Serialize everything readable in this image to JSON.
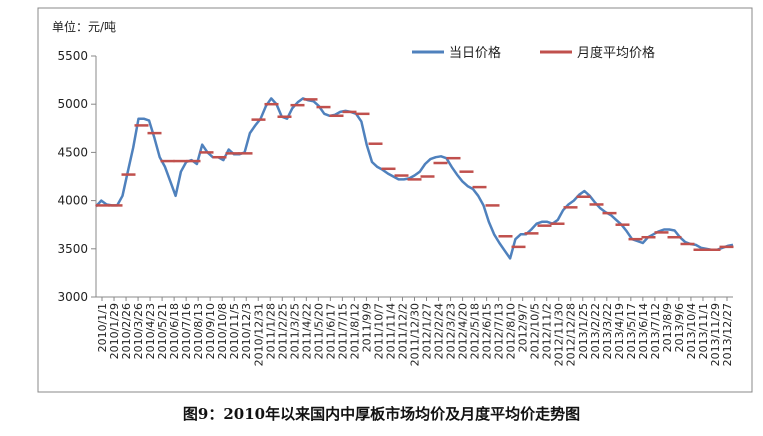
{
  "caption": "图9：2010年以来国内中厚板市场均价及月度平均价走势图",
  "chart_data": {
    "type": "line",
    "unit_label": "单位：元/吨",
    "title": "",
    "xlabel": "",
    "ylabel": "",
    "ylim": [
      3000,
      5500
    ],
    "y_ticks": [
      3000,
      3500,
      4000,
      4500,
      5000,
      5500
    ],
    "grid": false,
    "legend_position": "top-right",
    "colors": {
      "daily": "#4f81bd",
      "monthly": "#c0504d",
      "border": "#888888"
    },
    "x_tick_labels": [
      "2010/1/1",
      "2010/1/29",
      "2010/2/26",
      "2010/3/26",
      "2010/4/23",
      "2010/5/21",
      "2010/6/18",
      "2010/7/16",
      "2010/8/13",
      "2010/9/10",
      "2010/10/8",
      "2010/11/5",
      "2010/12/3",
      "2010/12/31",
      "2011/1/28",
      "2011/2/25",
      "2011/3/25",
      "2011/4/22",
      "2011/5/20",
      "2011/6/17",
      "2011/7/15",
      "2011/8/12",
      "2011/9/9",
      "2011/10/7",
      "2011/11/4",
      "2011/12/2",
      "2011/12/30",
      "2012/1/27",
      "2012/2/24",
      "2012/3/23",
      "2012/4/20",
      "2012/5/18",
      "2012/6/15",
      "2012/7/13",
      "2012/8/10",
      "2012/9/7",
      "2012/10/5",
      "2012/11/2",
      "2012/11/30",
      "2012/12/28",
      "2013/1/25",
      "2013/2/22",
      "2013/3/22",
      "2013/4/19",
      "2013/5/17",
      "2013/6/14",
      "2013/7/12",
      "2013/8/9",
      "2013/9/6",
      "2013/10/4",
      "2013/11/1",
      "2013/11/29",
      "2013/12/27"
    ],
    "series": [
      {
        "name": "当日价格",
        "values": [
          3940,
          4000,
          3960,
          3950,
          3950,
          4050,
          4300,
          4550,
          4850,
          4850,
          4830,
          4650,
          4450,
          4350,
          4200,
          4050,
          4300,
          4400,
          4420,
          4380,
          4580,
          4500,
          4450,
          4450,
          4420,
          4530,
          4480,
          4480,
          4500,
          4700,
          4780,
          4850,
          4980,
          5060,
          5000,
          4870,
          4850,
          4960,
          5020,
          5060,
          5040,
          5030,
          4980,
          4900,
          4880,
          4890,
          4920,
          4930,
          4920,
          4900,
          4820,
          4580,
          4400,
          4350,
          4320,
          4280,
          4250,
          4220,
          4220,
          4230,
          4260,
          4300,
          4380,
          4430,
          4450,
          4460,
          4440,
          4350,
          4270,
          4200,
          4150,
          4120,
          4050,
          3950,
          3780,
          3650,
          3560,
          3480,
          3400,
          3600,
          3650,
          3650,
          3700,
          3760,
          3780,
          3780,
          3760,
          3800,
          3900,
          3960,
          4000,
          4060,
          4100,
          4050,
          3980,
          3920,
          3880,
          3850,
          3800,
          3750,
          3680,
          3600,
          3580,
          3560,
          3620,
          3650,
          3680,
          3700,
          3700,
          3690,
          3620,
          3570,
          3550,
          3540,
          3510,
          3500,
          3490,
          3490,
          3510,
          3530,
          3540
        ]
      },
      {
        "name": "月度平均价格",
        "values": [
          3950,
          3950,
          4270,
          4780,
          4700,
          4410,
          4410,
          4410,
          4500,
          4450,
          4490,
          4490,
          4840,
          5000,
          4870,
          4990,
          5050,
          4970,
          4880,
          4920,
          4900,
          4590,
          4330,
          4260,
          4220,
          4250,
          4390,
          4440,
          4300,
          4140,
          3950,
          3630,
          3520,
          3660,
          3740,
          3760,
          3930,
          4040,
          3960,
          3870,
          3750,
          3600,
          3620,
          3670,
          3620,
          3550,
          3490,
          3490,
          3520
        ]
      }
    ]
  }
}
